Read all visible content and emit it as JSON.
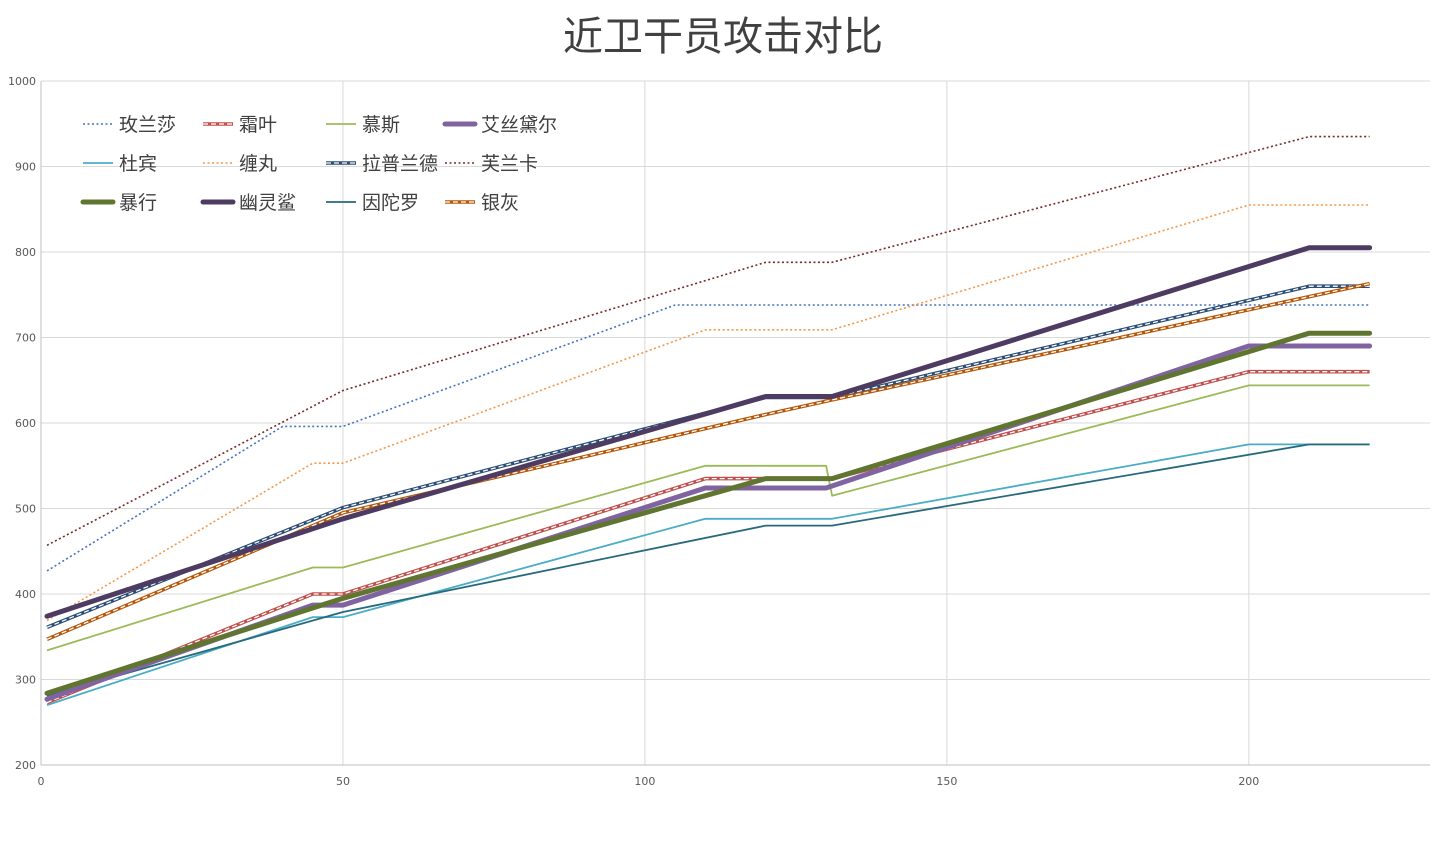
{
  "chart_data": {
    "type": "line",
    "title": "近卫干员攻击对比",
    "xlabel": "",
    "ylabel": "",
    "xlim": [
      0,
      230
    ],
    "ylim": [
      200,
      1000
    ],
    "x_ticks": [
      "0",
      "50",
      "100",
      "150",
      "200"
    ],
    "y_ticks": [
      "200",
      "300",
      "400",
      "500",
      "600",
      "700",
      "800",
      "900",
      "1000"
    ],
    "grid": true,
    "legend_position": "top-left",
    "series": [
      {
        "name": "玫兰莎",
        "color": "#4472c4",
        "style": "dotted",
        "points": [
          [
            1,
            427
          ],
          [
            40,
            596
          ],
          [
            50,
            596
          ],
          [
            105,
            738
          ],
          [
            220,
            738
          ]
        ]
      },
      {
        "name": "霜叶",
        "color": "#c0504d",
        "style": "double",
        "points": [
          [
            1,
            273
          ],
          [
            45,
            400
          ],
          [
            50,
            400
          ],
          [
            110,
            535
          ],
          [
            120,
            535
          ],
          [
            131,
            535
          ],
          [
            200,
            660
          ],
          [
            220,
            660
          ]
        ]
      },
      {
        "name": "慕斯",
        "color": "#9bbb59",
        "style": "solid",
        "points": [
          [
            1,
            334
          ],
          [
            45,
            431
          ],
          [
            50,
            431
          ],
          [
            110,
            550
          ],
          [
            130,
            550
          ],
          [
            131,
            515
          ],
          [
            200,
            644
          ],
          [
            220,
            644
          ]
        ]
      },
      {
        "name": "艾丝黛尔",
        "color": "#8064a2",
        "style": "thick",
        "points": [
          [
            1,
            277
          ],
          [
            45,
            387
          ],
          [
            50,
            387
          ],
          [
            110,
            524
          ],
          [
            130,
            524
          ],
          [
            200,
            690
          ],
          [
            220,
            690
          ]
        ]
      },
      {
        "name": "杜宾",
        "color": "#4bacc6",
        "style": "solid",
        "points": [
          [
            1,
            270
          ],
          [
            45,
            373
          ],
          [
            50,
            373
          ],
          [
            110,
            488
          ],
          [
            131,
            488
          ],
          [
            200,
            575
          ],
          [
            220,
            575
          ]
        ]
      },
      {
        "name": "缠丸",
        "color": "#f79646",
        "style": "dotted",
        "points": [
          [
            1,
            369
          ],
          [
            45,
            553
          ],
          [
            50,
            553
          ],
          [
            110,
            709
          ],
          [
            131,
            709
          ],
          [
            200,
            855
          ],
          [
            220,
            855
          ]
        ]
      },
      {
        "name": "拉普兰德",
        "color": "#2c4d75",
        "style": "double",
        "points": [
          [
            1,
            361
          ],
          [
            50,
            501
          ],
          [
            120,
            630
          ],
          [
            131,
            630
          ],
          [
            210,
            760
          ],
          [
            220,
            760
          ]
        ]
      },
      {
        "name": "芙兰卡",
        "color": "#772c2a",
        "style": "dotted",
        "points": [
          [
            1,
            457
          ],
          [
            50,
            638
          ],
          [
            120,
            788
          ],
          [
            131,
            788
          ],
          [
            210,
            935
          ],
          [
            220,
            935
          ]
        ]
      },
      {
        "name": "暴行",
        "color": "#5f7530",
        "style": "thick",
        "points": [
          [
            1,
            284
          ],
          [
            50,
            395
          ],
          [
            120,
            535
          ],
          [
            131,
            535
          ],
          [
            210,
            705
          ],
          [
            220,
            705
          ]
        ]
      },
      {
        "name": "幽灵鲨",
        "color": "#4d3b62",
        "style": "thick",
        "points": [
          [
            1,
            374
          ],
          [
            50,
            488
          ],
          [
            120,
            631
          ],
          [
            131,
            631
          ],
          [
            210,
            805
          ],
          [
            220,
            805
          ]
        ]
      },
      {
        "name": "因陀罗",
        "color": "#276a7c",
        "style": "solid",
        "points": [
          [
            1,
            281
          ],
          [
            50,
            379
          ],
          [
            120,
            480
          ],
          [
            131,
            480
          ],
          [
            210,
            575
          ],
          [
            220,
            575
          ]
        ]
      },
      {
        "name": "银灰",
        "color": "#b65708",
        "style": "double",
        "points": [
          [
            1,
            347
          ],
          [
            50,
            495
          ],
          [
            120,
            610
          ],
          [
            131,
            627
          ],
          [
            220,
            763
          ]
        ]
      }
    ]
  }
}
